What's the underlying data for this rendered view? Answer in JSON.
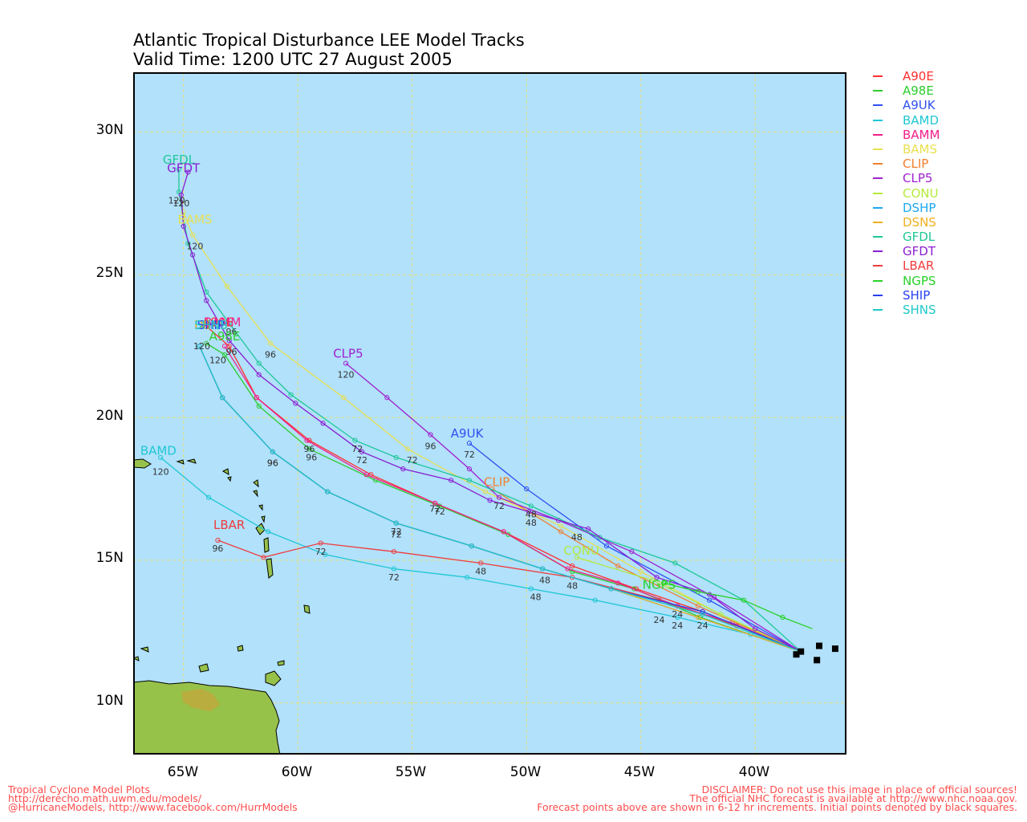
{
  "header": {
    "title": "Atlantic Tropical Disturbance LEE Model Tracks",
    "subtitle": "Valid Time: 1200 UTC 27 August 2005"
  },
  "axes": {
    "lat_labels": [
      "30N",
      "25N",
      "20N",
      "15N",
      "10N"
    ],
    "lon_labels": [
      "65W",
      "60W",
      "55W",
      "50W",
      "45W",
      "40W"
    ]
  },
  "colors": {
    "ocean": "#b1e1fb",
    "land": "#97c24a",
    "grid": "#e6e07a",
    "frame": "#000000"
  },
  "legend": [
    {
      "name": "A90E",
      "color": "#ff3030"
    },
    {
      "name": "A98E",
      "color": "#2ecc2e"
    },
    {
      "name": "A9UK",
      "color": "#2f50f0"
    },
    {
      "name": "BAMD",
      "color": "#1fc7d4"
    },
    {
      "name": "BAMM",
      "color": "#f0208a"
    },
    {
      "name": "BAMS",
      "color": "#e8e050"
    },
    {
      "name": "CLIP",
      "color": "#f08030"
    },
    {
      "name": "CLP5",
      "color": "#a020d0"
    },
    {
      "name": "CONU",
      "color": "#b4ea3c"
    },
    {
      "name": "DSHP",
      "color": "#1ca8f0"
    },
    {
      "name": "DSNS",
      "color": "#f0b020"
    },
    {
      "name": "GFDL",
      "color": "#1ec896"
    },
    {
      "name": "GFDT",
      "color": "#8a1ed2"
    },
    {
      "name": "LBAR",
      "color": "#f03c3c"
    },
    {
      "name": "NGPS",
      "color": "#28d228"
    },
    {
      "name": "SHIP",
      "color": "#2840f0"
    },
    {
      "name": "SHNS",
      "color": "#20c8c8"
    }
  ],
  "tracks": [
    {
      "name": "A90E",
      "color": "#ff3030",
      "label_pos": [
        -63.5,
        23.2
      ],
      "points": [
        [
          -38,
          11.8
        ],
        [
          -42.3,
          13.2
        ],
        [
          -45.2,
          14
        ],
        [
          -48,
          14.8
        ],
        [
          -51,
          16
        ],
        [
          -54,
          17
        ],
        [
          -56.8,
          18
        ],
        [
          -59.5,
          19.2
        ],
        [
          -61.8,
          20.7
        ],
        [
          -63,
          22.5
        ],
        [
          -64,
          23.2
        ]
      ],
      "hour_labels": [
        [
          "72",
          -54,
          16.7
        ],
        [
          "96",
          -59.5,
          18.8
        ],
        [
          "120",
          -64.2,
          22.4
        ]
      ]
    },
    {
      "name": "A98E",
      "color": "#2ecc2e",
      "label_pos": [
        -63.2,
        22.7
      ],
      "points": [
        [
          -38,
          11.8
        ],
        [
          -42.4,
          13
        ],
        [
          -45.3,
          14
        ],
        [
          -48,
          14.6
        ],
        [
          -50.8,
          15.9
        ],
        [
          -53.8,
          16.9
        ],
        [
          -56.6,
          17.8
        ],
        [
          -59.5,
          18.9
        ],
        [
          -61.7,
          20.4
        ],
        [
          -63.2,
          22.2
        ],
        [
          -64,
          22.6
        ]
      ],
      "hour_labels": [
        [
          "72",
          -53.8,
          16.6
        ],
        [
          "96",
          -59.4,
          18.5
        ],
        [
          "120",
          -63.5,
          21.9
        ]
      ]
    },
    {
      "name": "A9UK",
      "color": "#2f50f0",
      "label_pos": [
        -52.6,
        19.3
      ],
      "points": [
        [
          -38,
          11.8
        ],
        [
          -42,
          13.6
        ],
        [
          -46.5,
          15.5
        ],
        [
          -50,
          17.5
        ],
        [
          -52.5,
          19.1
        ]
      ],
      "hour_labels": [
        [
          "72",
          -52.5,
          18.6
        ]
      ]
    },
    {
      "name": "BAMD",
      "color": "#1fc7d4",
      "label_pos": [
        -66.1,
        18.7
      ],
      "points": [
        [
          -38,
          11.8
        ],
        [
          -40.2,
          12.4
        ],
        [
          -43.4,
          13
        ],
        [
          -47,
          13.6
        ],
        [
          -49.8,
          14
        ],
        [
          -52.6,
          14.4
        ],
        [
          -55.8,
          14.7
        ],
        [
          -58.8,
          15.2
        ],
        [
          -61.3,
          16
        ],
        [
          -63.9,
          17.2
        ],
        [
          -66,
          18.6
        ]
      ],
      "hour_labels": [
        [
          "24",
          -43.4,
          12.6
        ],
        [
          "48",
          -49.6,
          13.6
        ],
        [
          "72",
          -55.8,
          14.3
        ],
        [
          "120",
          -66,
          18
        ]
      ]
    },
    {
      "name": "BAMM",
      "color": "#f0208a",
      "label_pos": [
        -63.3,
        23.2
      ],
      "points": [
        [
          -38,
          11.8
        ],
        [
          -41,
          12.8
        ],
        [
          -43.4,
          13.4
        ],
        [
          -46,
          14.2
        ],
        [
          -48.2,
          14.7
        ],
        [
          -51,
          16
        ],
        [
          -54,
          17
        ],
        [
          -57,
          18
        ],
        [
          -59.6,
          19.2
        ],
        [
          -61.8,
          20.7
        ],
        [
          -63.2,
          22.5
        ]
      ],
      "hour_labels": []
    },
    {
      "name": "BAMS",
      "color": "#e8e050",
      "label_pos": [
        -64.5,
        26.8
      ],
      "points": [
        [
          -38,
          11.8
        ],
        [
          -41.5,
          13.1
        ],
        [
          -45,
          14.6
        ],
        [
          -48.5,
          16.2
        ],
        [
          -51.8,
          17.4
        ],
        [
          -55.2,
          18.9
        ],
        [
          -58,
          20.7
        ],
        [
          -61.2,
          22.6
        ],
        [
          -63.1,
          24.6
        ],
        [
          -64.6,
          26.4
        ],
        [
          -65,
          27.2
        ]
      ],
      "hour_labels": [
        [
          "72",
          -55,
          18.4
        ],
        [
          "96",
          -61.2,
          22.1
        ],
        [
          "120",
          -64.5,
          25.9
        ]
      ]
    },
    {
      "name": "CLIP",
      "color": "#f08030",
      "label_pos": [
        -51.3,
        17.6
      ],
      "points": [
        [
          -38,
          11.8
        ],
        [
          -42.5,
          13.4
        ],
        [
          -46,
          14.8
        ],
        [
          -48.5,
          16
        ],
        [
          -51.5,
          17.5
        ]
      ],
      "hour_labels": []
    },
    {
      "name": "CLP5",
      "color": "#a020d0",
      "label_pos": [
        -57.8,
        22.1
      ],
      "points": [
        [
          -38,
          11.8
        ],
        [
          -41.8,
          13.7
        ],
        [
          -45.4,
          15.3
        ],
        [
          -48.6,
          16.4
        ],
        [
          -51.2,
          17.2
        ],
        [
          -52.5,
          18.2
        ],
        [
          -54.2,
          19.4
        ],
        [
          -56.1,
          20.7
        ],
        [
          -57.9,
          21.9
        ]
      ],
      "hour_labels": [
        [
          "72",
          -51.2,
          16.8
        ],
        [
          "96",
          -54.2,
          18.9
        ],
        [
          "120",
          -57.9,
          21.4
        ]
      ]
    },
    {
      "name": "CONU",
      "color": "#b4ea3c",
      "label_pos": [
        -47.6,
        15.2
      ],
      "points": [
        [
          -38,
          11.8
        ],
        [
          -41.5,
          13.1
        ],
        [
          -44.5,
          14.3
        ],
        [
          -47.8,
          15.1
        ]
      ],
      "hour_labels": [
        [
          "48",
          -47.8,
          15.7
        ]
      ]
    },
    {
      "name": "DSHP",
      "color": "#1ca8f0",
      "label_pos": [
        -63.8,
        23.1
      ],
      "points": [
        [
          -38,
          11.8
        ],
        [
          -42.5,
          13
        ],
        [
          -46.3,
          14
        ],
        [
          -49.3,
          14.7
        ],
        [
          -52.4,
          15.5
        ],
        [
          -55.7,
          16.3
        ],
        [
          -58.7,
          17.4
        ],
        [
          -61.1,
          18.8
        ],
        [
          -63.3,
          20.7
        ],
        [
          -64.3,
          22.5
        ]
      ],
      "hour_labels": [
        [
          "96",
          -61.1,
          18.3
        ],
        [
          "72",
          -55.7,
          15.9
        ]
      ]
    },
    {
      "name": "DSNS",
      "color": "#f0b020",
      "label_pos": [
        -63.8,
        23.1
      ],
      "points": [
        [
          -38,
          11.8
        ],
        [
          -42.5,
          13
        ],
        [
          -46.3,
          14
        ],
        [
          -49.3,
          14.7
        ],
        [
          -52.4,
          15.5
        ],
        [
          -55.7,
          16.3
        ],
        [
          -58.7,
          17.4
        ],
        [
          -61.1,
          18.8
        ],
        [
          -63.3,
          20.7
        ],
        [
          -64.3,
          22.5
        ]
      ],
      "hour_labels": []
    },
    {
      "name": "GFDL",
      "color": "#1ec896",
      "label_pos": [
        -65.2,
        28.9
      ],
      "points": [
        [
          -38,
          11.8
        ],
        [
          -40.5,
          13.6
        ],
        [
          -43.5,
          14.9
        ],
        [
          -46.8,
          15.8
        ],
        [
          -49.8,
          16.9
        ],
        [
          -52.5,
          17.8
        ],
        [
          -55.7,
          18.6
        ],
        [
          -57.5,
          19.2
        ],
        [
          -60.3,
          20.8
        ],
        [
          -61.7,
          21.9
        ],
        [
          -63,
          23.3
        ],
        [
          -64,
          24.4
        ],
        [
          -64.8,
          26.1
        ],
        [
          -65.2,
          27.9
        ],
        [
          -65.2,
          28.7
        ]
      ],
      "hour_labels": [
        [
          "48",
          -49.8,
          16.5
        ],
        [
          "72",
          -57.4,
          18.8
        ],
        [
          "96",
          -62.9,
          22.9
        ],
        [
          "120",
          -65.3,
          27.5
        ]
      ]
    },
    {
      "name": "GFDT",
      "color": "#8a1ed2",
      "label_pos": [
        -65,
        28.6
      ],
      "points": [
        [
          -38,
          11.8
        ],
        [
          -40,
          12.6
        ],
        [
          -42,
          13.8
        ],
        [
          -44.3,
          14.4
        ],
        [
          -47.3,
          16.1
        ],
        [
          -49.9,
          16.7
        ],
        [
          -51.6,
          17.1
        ],
        [
          -53.3,
          17.8
        ],
        [
          -55.4,
          18.2
        ],
        [
          -57.2,
          18.8
        ],
        [
          -58.9,
          19.8
        ],
        [
          -60.1,
          20.5
        ],
        [
          -61.7,
          21.5
        ],
        [
          -63,
          22.7
        ],
        [
          -64,
          24.1
        ],
        [
          -64.6,
          25.7
        ],
        [
          -65,
          26.7
        ],
        [
          -65.1,
          27.8
        ],
        [
          -64.8,
          28.6
        ]
      ],
      "hour_labels": [
        [
          "48",
          -49.8,
          16.2
        ],
        [
          "72",
          -57.2,
          18.4
        ],
        [
          "96",
          -62.9,
          22.2
        ],
        [
          "120",
          -65.1,
          27.4
        ]
      ]
    },
    {
      "name": "LBAR",
      "color": "#f03c3c",
      "label_pos": [
        -63,
        16.1
      ],
      "points": [
        [
          -38,
          11.8
        ],
        [
          -40.8,
          12.7
        ],
        [
          -44.2,
          13.6
        ],
        [
          -48,
          14.4
        ],
        [
          -52,
          14.9
        ],
        [
          -55.8,
          15.3
        ],
        [
          -59,
          15.6
        ],
        [
          -61.5,
          15.1
        ],
        [
          -63.5,
          15.7
        ]
      ],
      "hour_labels": [
        [
          "48",
          -48,
          14
        ],
        [
          "48",
          -52,
          14.5
        ],
        [
          "72",
          -59,
          15.2
        ],
        [
          "96",
          -63.5,
          15.3
        ]
      ]
    },
    {
      "name": "NGPS",
      "color": "#28d228",
      "label_pos": [
        -44.2,
        14
      ],
      "points": [
        [
          -37.5,
          12.6
        ],
        [
          -38.8,
          13
        ],
        [
          -40.5,
          13.6
        ],
        [
          -42.5,
          13.9
        ],
        [
          -44,
          14.2
        ]
      ],
      "hour_labels": []
    },
    {
      "name": "SHIP",
      "color": "#2840f0",
      "label_pos": [
        -63.8,
        23.1
      ],
      "points": [
        [
          -38,
          11.8
        ],
        [
          -42.3,
          13.2
        ],
        [
          -46.3,
          14
        ],
        [
          -49.3,
          14.7
        ],
        [
          -52.4,
          15.5
        ],
        [
          -55.7,
          16.3
        ],
        [
          -58.7,
          17.4
        ],
        [
          -61.1,
          18.8
        ],
        [
          -63.3,
          20.7
        ],
        [
          -64.3,
          22.5
        ]
      ],
      "hour_labels": []
    },
    {
      "name": "SHNS",
      "color": "#20c8c8",
      "label_pos": [
        -63.8,
        23.1
      ],
      "points": [
        [
          -38,
          11.8
        ],
        [
          -42.3,
          13.1
        ],
        [
          -46.3,
          14
        ],
        [
          -49.3,
          14.7
        ],
        [
          -52.4,
          15.5
        ],
        [
          -55.7,
          16.3
        ],
        [
          -58.7,
          17.4
        ],
        [
          -61.1,
          18.8
        ],
        [
          -63.3,
          20.7
        ],
        [
          -64.3,
          22.5
        ]
      ],
      "hour_labels": [
        [
          "24",
          -42.3,
          12.6
        ],
        [
          "24",
          -43.4,
          13
        ],
        [
          "24",
          -44.2,
          12.8
        ],
        [
          "48",
          -49.2,
          14.2
        ],
        [
          "72",
          -55.7,
          15.8
        ],
        [
          "96",
          -61.1,
          18.3
        ]
      ]
    }
  ],
  "initial_points": [
    [
      -38,
      11.8
    ],
    [
      -37.2,
      12
    ],
    [
      -37.3,
      11.5
    ],
    [
      -36.5,
      11.9
    ],
    [
      -38.2,
      11.7
    ]
  ],
  "footer": {
    "left_1": "Tropical Cyclone Model Plots",
    "left_2": "http://derecho.math.uwm.edu/models/",
    "left_3": "@HurricaneModels, http://www.facebook.com/HurrModels",
    "right_1": "DISCLAIMER: Do not use this image in place of official sources!",
    "right_2": "The official NHC forecast is available at http://www.nhc.noaa.gov.",
    "right_3": "Forecast points above are shown in 6-12 hr increments. Initial points denoted by black squares."
  }
}
